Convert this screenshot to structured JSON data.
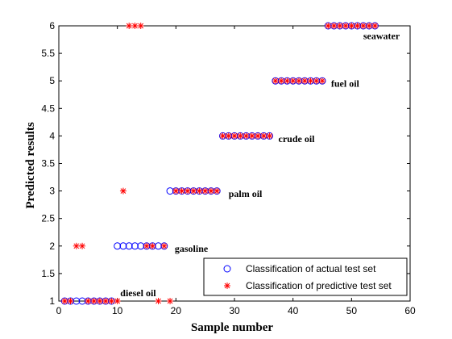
{
  "chart_data": {
    "type": "scatter",
    "xlabel": "Sample number",
    "ylabel": "Predicted results",
    "xlim": [
      0,
      60
    ],
    "ylim": [
      1,
      6
    ],
    "xticks": [
      0,
      10,
      20,
      30,
      40,
      50,
      60
    ],
    "yticks": [
      1,
      1.5,
      2,
      2.5,
      3,
      3.5,
      4,
      4.5,
      5,
      5.5,
      6
    ],
    "grid": false,
    "legend_position": "bottom-right",
    "series": [
      {
        "name": "Classification of actual test set",
        "marker": "circle",
        "color": "#0000ff",
        "x": [
          1,
          2,
          3,
          4,
          5,
          6,
          7,
          8,
          9,
          10,
          11,
          12,
          13,
          14,
          15,
          16,
          17,
          18,
          19,
          20,
          21,
          22,
          23,
          24,
          25,
          26,
          27,
          28,
          29,
          30,
          31,
          32,
          33,
          34,
          35,
          36,
          37,
          38,
          39,
          40,
          41,
          42,
          43,
          44,
          45,
          46,
          47,
          48,
          49,
          50,
          51,
          52,
          53,
          54
        ],
        "y": [
          1,
          1,
          1,
          1,
          1,
          1,
          1,
          1,
          1,
          2,
          2,
          2,
          2,
          2,
          2,
          2,
          2,
          2,
          3,
          3,
          3,
          3,
          3,
          3,
          3,
          3,
          3,
          4,
          4,
          4,
          4,
          4,
          4,
          4,
          4,
          4,
          5,
          5,
          5,
          5,
          5,
          5,
          5,
          5,
          5,
          6,
          6,
          6,
          6,
          6,
          6,
          6,
          6,
          6
        ]
      },
      {
        "name": "Classification of predictive test set",
        "marker": "asterisk",
        "color": "#ff0000",
        "x": [
          1,
          2,
          3,
          4,
          5,
          6,
          7,
          8,
          9,
          10,
          11,
          12,
          13,
          14,
          15,
          16,
          17,
          18,
          19,
          20,
          21,
          22,
          23,
          24,
          25,
          26,
          27,
          28,
          29,
          30,
          31,
          32,
          33,
          34,
          35,
          36,
          37,
          38,
          39,
          40,
          41,
          42,
          43,
          44,
          45,
          46,
          47,
          48,
          49,
          50,
          51,
          52,
          53,
          54
        ],
        "y": [
          1,
          1,
          2,
          2,
          1,
          1,
          1,
          1,
          1,
          1,
          3,
          6,
          6,
          6,
          2,
          2,
          1,
          2,
          1,
          3,
          3,
          3,
          3,
          3,
          3,
          3,
          3,
          4,
          4,
          4,
          4,
          4,
          4,
          4,
          4,
          4,
          5,
          5,
          5,
          5,
          5,
          5,
          5,
          5,
          5,
          6,
          6,
          6,
          6,
          6,
          6,
          6,
          6,
          6
        ]
      }
    ],
    "annotations": [
      {
        "text": "seawater",
        "x": 52,
        "y": 5.82
      },
      {
        "text": "fuel oil",
        "x": 46.5,
        "y": 4.95
      },
      {
        "text": "crude oil",
        "x": 37.5,
        "y": 3.95
      },
      {
        "text": "palm oil",
        "x": 29,
        "y": 2.95
      },
      {
        "text": "gasoline",
        "x": 19.8,
        "y": 1.95
      },
      {
        "text": "diesel oil",
        "x": 10.5,
        "y": 1.15
      }
    ]
  }
}
